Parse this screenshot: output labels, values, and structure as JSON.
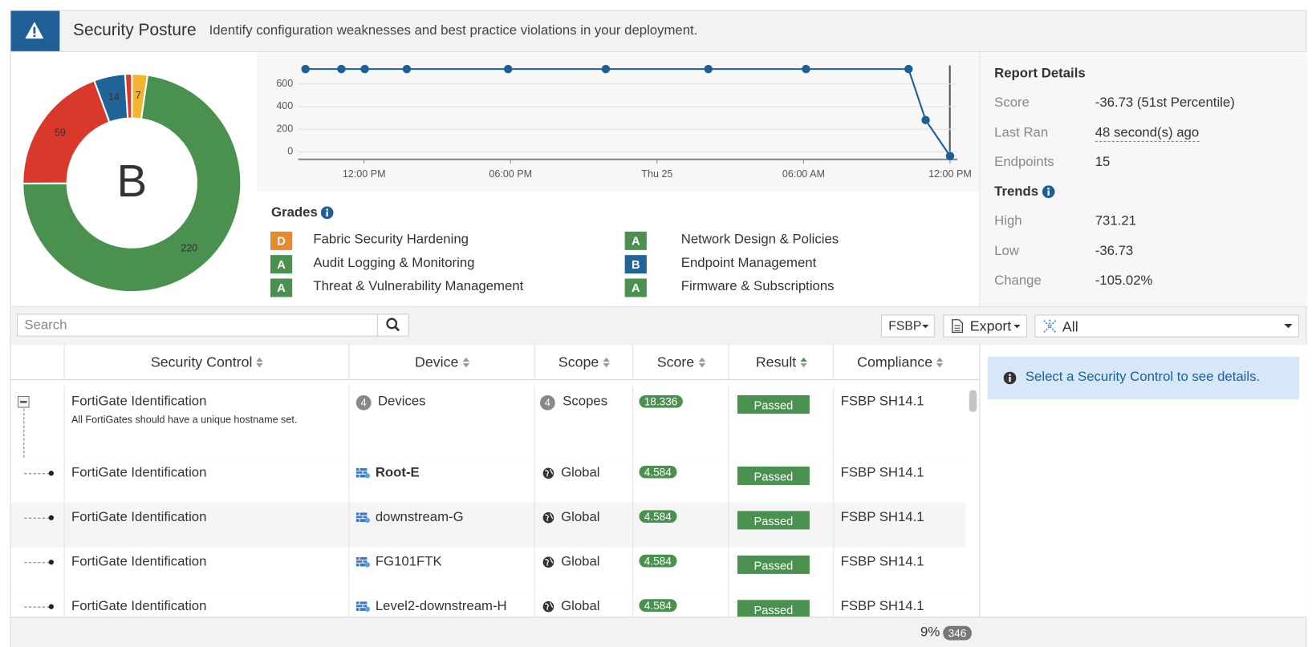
{
  "header": {
    "title": "Security Posture",
    "subtitle": "Identify configuration weaknesses and best practice violations in your deployment."
  },
  "grade_donut": {
    "type": "pie",
    "grade": "B",
    "values": [
      7,
      220,
      59,
      14,
      3
    ],
    "colors": [
      "#f3b530",
      "#4a9150",
      "#d9392b",
      "#1f6599",
      "#d9392b"
    ]
  },
  "trend_chart": {
    "type": "line",
    "x": [
      -2.4,
      -0.93,
      0.03,
      1.75,
      5.9,
      9.9,
      14.1,
      18.1,
      22.3,
      23.0,
      24.0
    ],
    "values": [
      731.21,
      731.21,
      731.21,
      731.21,
      731.21,
      731.21,
      731.21,
      731.21,
      731.21,
      281,
      -36.73
    ],
    "color": "#1f5f95",
    "xlim": [
      -2.7,
      24.3
    ],
    "xticks": [
      {
        "value": 0,
        "label": "12:00 PM"
      },
      {
        "value": 6,
        "label": "06:00 PM"
      },
      {
        "value": 12,
        "label": "Thu 25"
      },
      {
        "value": 18,
        "label": "06:00 AM"
      },
      {
        "value": 24,
        "label": "12:00 PM"
      }
    ],
    "ylim": [
      -70,
      800
    ],
    "yticks": [
      0,
      200,
      400,
      600
    ],
    "grid": true
  },
  "grades": {
    "title": "Grades",
    "items": [
      {
        "grade": "D",
        "name": "Fabric Security Hardening",
        "color": "#e8892b"
      },
      {
        "grade": "A",
        "name": "Audit Logging & Monitoring",
        "color": "#4a9150"
      },
      {
        "grade": "A",
        "name": "Threat & Vulnerability Management",
        "color": "#4a9150"
      },
      {
        "grade": "A",
        "name": "Network Design & Policies",
        "color": "#4a9150"
      },
      {
        "grade": "B",
        "name": "Endpoint Management",
        "color": "#1f6599"
      },
      {
        "grade": "A",
        "name": "Firmware & Subscriptions",
        "color": "#4a9150"
      }
    ]
  },
  "report_details": {
    "title": "Report Details",
    "rows": [
      {
        "label": "Score",
        "value": "-36.73 (51st Percentile)"
      },
      {
        "label": "Last Ran",
        "value": "48 second(s) ago"
      },
      {
        "label": "Endpoints",
        "value": "15"
      }
    ]
  },
  "trends": {
    "title": "Trends",
    "rows": [
      {
        "label": "High",
        "value": "731.21"
      },
      {
        "label": "Low",
        "value": "-36.73"
      },
      {
        "label": "Change",
        "value": "-105.02%"
      }
    ]
  },
  "toolbar": {
    "search_placeholder": "Search",
    "standard": "FSBP",
    "export": "Export",
    "filter": "All"
  },
  "table": {
    "columns": [
      "Security Control",
      "Device",
      "Scope",
      "Score",
      "Result",
      "Compliance"
    ],
    "parent": {
      "control": "FortiGate Identification",
      "description": "All FortiGates should have a unique hostname set.",
      "device_count": "4",
      "device": "Devices",
      "scope_count": "4",
      "scope": "Scopes",
      "score": "18.336",
      "result": "Passed",
      "compliance": "FSBP SH14.1"
    },
    "rows": [
      {
        "control": "FortiGate Identification",
        "device": "Root-E",
        "scope": "Global",
        "score": "4.584",
        "result": "Passed",
        "compliance": "FSBP SH14.1"
      },
      {
        "control": "FortiGate Identification",
        "device": "downstream-G",
        "scope": "Global",
        "score": "4.584",
        "result": "Passed",
        "compliance": "FSBP SH14.1"
      },
      {
        "control": "FortiGate Identification",
        "device": "FG101FTK",
        "scope": "Global",
        "score": "4.584",
        "result": "Passed",
        "compliance": "FSBP SH14.1"
      },
      {
        "control": "FortiGate Identification",
        "device": "Level2-downstream-H",
        "scope": "Global",
        "score": "4.584",
        "result": "Passed",
        "compliance": "FSBP SH14.1"
      }
    ]
  },
  "info": "Select a Security Control to see details.",
  "footer": {
    "percent": "9%",
    "count": "346"
  }
}
